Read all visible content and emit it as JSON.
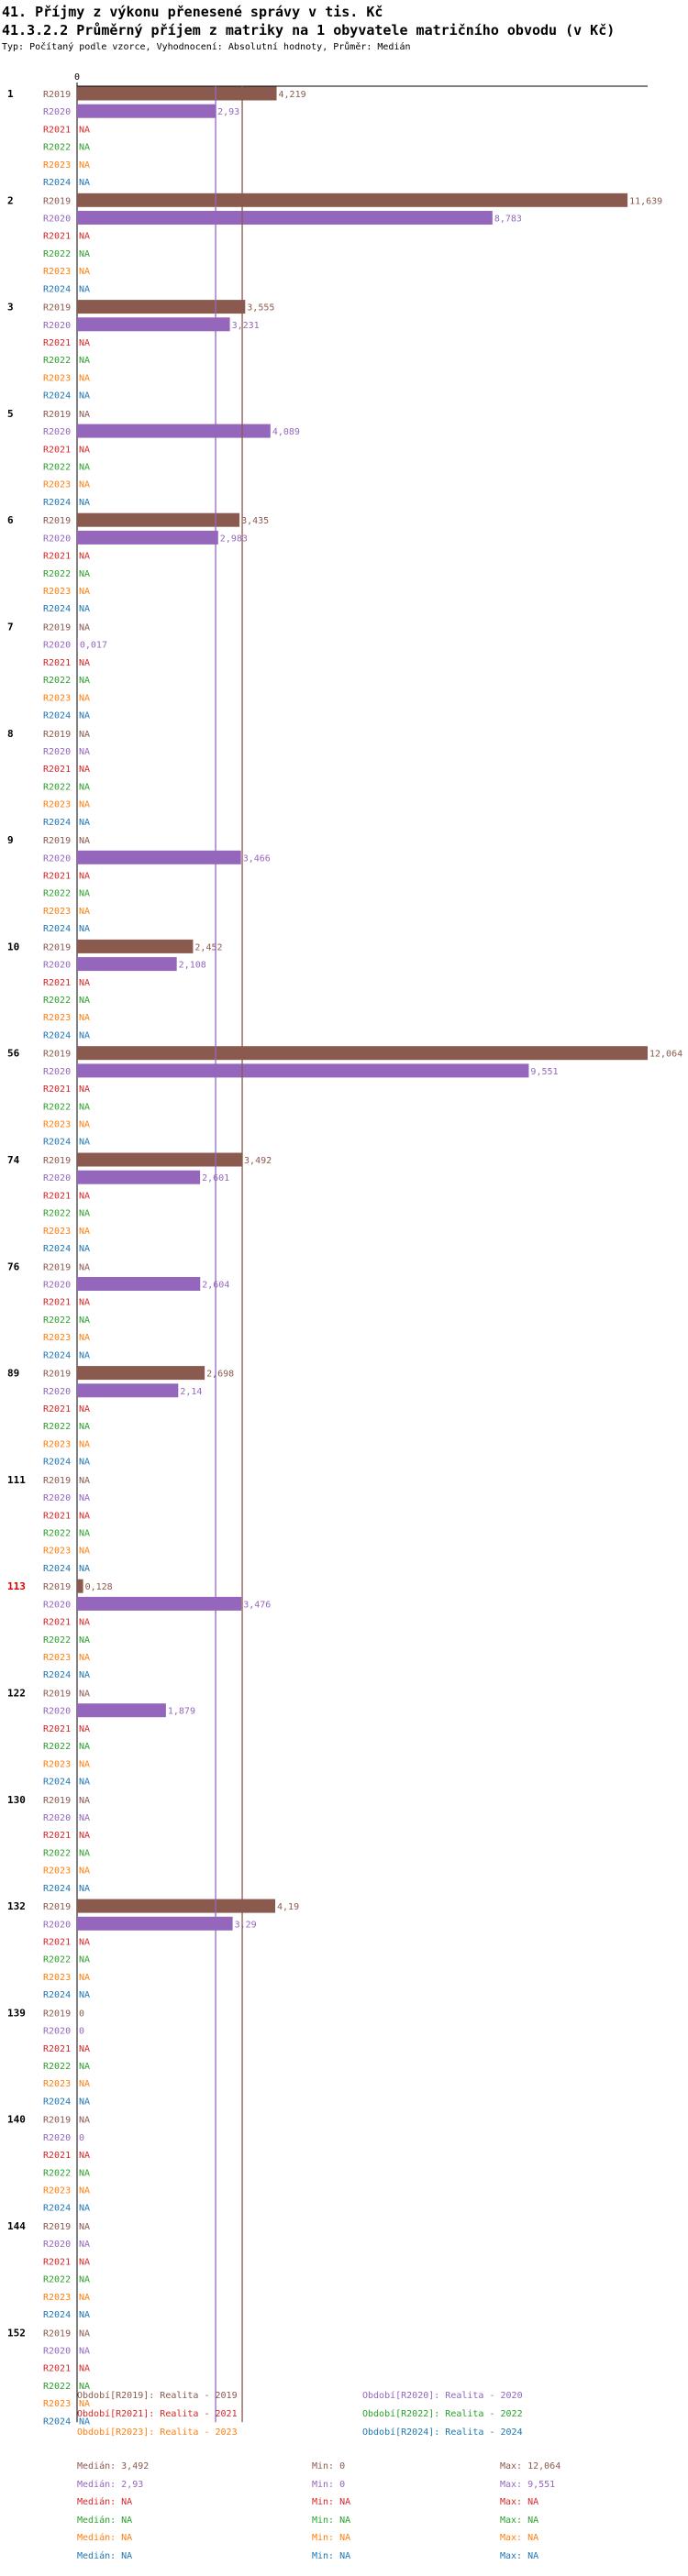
{
  "page": {
    "title1": "41. Příjmy z výkonu přenesené správy v tis. Kč",
    "title2": "41.3.2.2 Průměrný příjem z matriky na 1 obyvatele matričního obvodu (v Kč)",
    "subtitle": "Typ: Počítaný podle vzorce, Vyhodnocení: Absolutní hodnoty, Průměr: Medián"
  },
  "colors": {
    "R2019": "#8b5a4e",
    "R2020": "#9467bd",
    "R2021": "#d62728",
    "R2022": "#2ca02c",
    "R2023": "#ff7f0e",
    "R2024": "#1f77b4"
  },
  "chart_data": {
    "type": "bar",
    "orientation": "horizontal",
    "axis_zero_label": "0",
    "xlim": [
      0,
      12.064
    ],
    "series_keys": [
      "R2019",
      "R2020",
      "R2021",
      "R2022",
      "R2023",
      "R2024"
    ],
    "groups": [
      {
        "label": "1",
        "highlight": false,
        "values": [
          {
            "v": 4.219,
            "label": "4,219"
          },
          {
            "v": 2.93,
            "label": "2,93"
          },
          null,
          null,
          null,
          null
        ]
      },
      {
        "label": "2",
        "highlight": false,
        "values": [
          {
            "v": 11.639,
            "label": "11,639"
          },
          {
            "v": 8.783,
            "label": "8,783"
          },
          null,
          null,
          null,
          null
        ]
      },
      {
        "label": "3",
        "highlight": false,
        "values": [
          {
            "v": 3.555,
            "label": "3,555"
          },
          {
            "v": 3.231,
            "label": "3,231"
          },
          null,
          null,
          null,
          null
        ]
      },
      {
        "label": "5",
        "highlight": false,
        "values": [
          null,
          {
            "v": 4.089,
            "label": "4,089"
          },
          null,
          null,
          null,
          null
        ]
      },
      {
        "label": "6",
        "highlight": false,
        "values": [
          {
            "v": 3.435,
            "label": "3,435"
          },
          {
            "v": 2.983,
            "label": "2,983"
          },
          null,
          null,
          null,
          null
        ]
      },
      {
        "label": "7",
        "highlight": false,
        "values": [
          null,
          {
            "v": 0.017,
            "label": "0,017"
          },
          null,
          null,
          null,
          null
        ]
      },
      {
        "label": "8",
        "highlight": false,
        "values": [
          null,
          null,
          null,
          null,
          null,
          null
        ]
      },
      {
        "label": "9",
        "highlight": false,
        "values": [
          null,
          {
            "v": 3.466,
            "label": "3,466"
          },
          null,
          null,
          null,
          null
        ]
      },
      {
        "label": "10",
        "highlight": false,
        "values": [
          {
            "v": 2.452,
            "label": "2,452"
          },
          {
            "v": 2.108,
            "label": "2,108"
          },
          null,
          null,
          null,
          null
        ]
      },
      {
        "label": "56",
        "highlight": false,
        "values": [
          {
            "v": 12.064,
            "label": "12,064"
          },
          {
            "v": 9.551,
            "label": "9,551"
          },
          null,
          null,
          null,
          null
        ]
      },
      {
        "label": "74",
        "highlight": false,
        "values": [
          {
            "v": 3.492,
            "label": "3,492"
          },
          {
            "v": 2.601,
            "label": "2,601"
          },
          null,
          null,
          null,
          null
        ]
      },
      {
        "label": "76",
        "highlight": false,
        "values": [
          null,
          {
            "v": 2.604,
            "label": "2,604"
          },
          null,
          null,
          null,
          null
        ]
      },
      {
        "label": "89",
        "highlight": false,
        "values": [
          {
            "v": 2.698,
            "label": "2,698"
          },
          {
            "v": 2.14,
            "label": "2,14"
          },
          null,
          null,
          null,
          null
        ]
      },
      {
        "label": "111",
        "highlight": false,
        "values": [
          null,
          null,
          null,
          null,
          null,
          null
        ]
      },
      {
        "label": "113",
        "highlight": true,
        "values": [
          {
            "v": 0.128,
            "label": "0,128"
          },
          {
            "v": 3.476,
            "label": "3,476"
          },
          null,
          null,
          null,
          null
        ]
      },
      {
        "label": "122",
        "highlight": false,
        "values": [
          null,
          {
            "v": 1.879,
            "label": "1,879"
          },
          null,
          null,
          null,
          null
        ]
      },
      {
        "label": "130",
        "highlight": false,
        "values": [
          null,
          null,
          null,
          null,
          null,
          null
        ]
      },
      {
        "label": "132",
        "highlight": false,
        "values": [
          {
            "v": 4.19,
            "label": "4,19"
          },
          {
            "v": 3.29,
            "label": "3,29"
          },
          null,
          null,
          null,
          null
        ]
      },
      {
        "label": "139",
        "highlight": false,
        "values": [
          {
            "v": 0,
            "label": "0"
          },
          {
            "v": 0,
            "label": "0"
          },
          null,
          null,
          null,
          null
        ]
      },
      {
        "label": "140",
        "highlight": false,
        "values": [
          null,
          {
            "v": 0,
            "label": "0"
          },
          null,
          null,
          null,
          null
        ]
      },
      {
        "label": "144",
        "highlight": false,
        "values": [
          null,
          null,
          null,
          null,
          null,
          null
        ]
      },
      {
        "label": "152",
        "highlight": false,
        "values": [
          null,
          null,
          null,
          null,
          null,
          null
        ]
      }
    ],
    "na_label": "NA",
    "median_lines": [
      {
        "series": "R2019",
        "value": 3.492
      },
      {
        "series": "R2020",
        "value": 2.93
      }
    ]
  },
  "legend": [
    {
      "key": "R2019",
      "text": "Období[R2019]: Realita - 2019"
    },
    {
      "key": "R2020",
      "text": "Období[R2020]: Realita - 2020"
    },
    {
      "key": "R2021",
      "text": "Období[R2021]: Realita - 2021"
    },
    {
      "key": "R2022",
      "text": "Období[R2022]: Realita - 2022"
    },
    {
      "key": "R2023",
      "text": "Období[R2023]: Realita - 2023"
    },
    {
      "key": "R2024",
      "text": "Období[R2024]: Realita - 2024"
    }
  ],
  "stats": [
    {
      "key": "R2019",
      "median": "Medián: 3,492",
      "min": "Min: 0",
      "max": "Max: 12,064"
    },
    {
      "key": "R2020",
      "median": "Medián: 2,93",
      "min": "Min: 0",
      "max": "Max: 9,551"
    },
    {
      "key": "R2021",
      "median": "Medián: NA",
      "min": "Min: NA",
      "max": "Max: NA"
    },
    {
      "key": "R2022",
      "median": "Medián: NA",
      "min": "Min: NA",
      "max": "Max: NA"
    },
    {
      "key": "R2023",
      "median": "Medián: NA",
      "min": "Min: NA",
      "max": "Max: NA"
    },
    {
      "key": "R2024",
      "median": "Medián: NA",
      "min": "Min: NA",
      "max": "Max: NA"
    }
  ]
}
